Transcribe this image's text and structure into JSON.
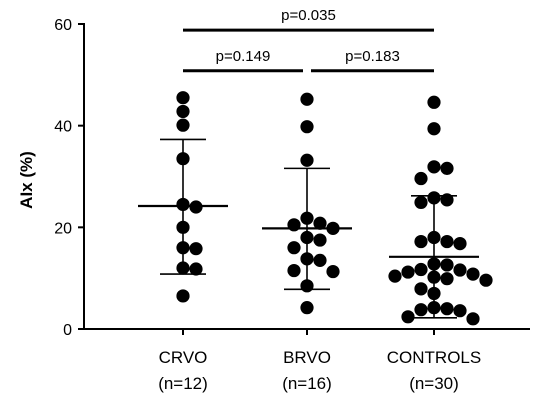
{
  "chart_data": {
    "type": "scatter",
    "ylabel": "AIx (%)",
    "ylim": [
      0,
      60
    ],
    "yticks": [
      0,
      20,
      40,
      60
    ],
    "grid": false,
    "groups": [
      {
        "label": "CRVO",
        "n_label": "(n=12)",
        "mean": 24.2,
        "sd_upper": 37.3,
        "sd_lower": 10.8,
        "values": [
          45.5,
          42.8,
          40.1,
          33.5,
          24.5,
          24.0,
          20.0,
          16.0,
          15.8,
          12.0,
          11.8,
          6.5
        ]
      },
      {
        "label": "BRVO",
        "n_label": "(n=16)",
        "mean": 19.8,
        "sd_upper": 31.6,
        "sd_lower": 7.8,
        "values": [
          45.2,
          39.8,
          33.2,
          21.8,
          20.8,
          20.5,
          19.8,
          18.0,
          17.5,
          16.0,
          13.8,
          13.5,
          11.5,
          11.3,
          8.5,
          4.2
        ]
      },
      {
        "label": "CONTROLS",
        "n_label": "(n=30)",
        "mean": 14.2,
        "sd_upper": 26.2,
        "sd_lower": 2.2,
        "values": [
          44.6,
          39.4,
          31.9,
          31.6,
          29.6,
          25.8,
          25.4,
          24.9,
          18.0,
          17.2,
          17.2,
          16.8,
          12.8,
          12.6,
          11.7,
          11.6,
          11.2,
          10.8,
          10.4,
          10.2,
          9.9,
          9.6,
          7.9,
          7.0,
          4.2,
          4.0,
          3.8,
          3.6,
          2.4,
          2.0
        ]
      }
    ],
    "comparisons": [
      {
        "from": 0,
        "to": 2,
        "y": 58.8,
        "label": "p=0.035"
      },
      {
        "from": 0,
        "to": 1,
        "y": 50.8,
        "label": "p=0.149"
      },
      {
        "from": 1,
        "to": 2,
        "y": 50.8,
        "label": "p=0.183"
      }
    ]
  }
}
